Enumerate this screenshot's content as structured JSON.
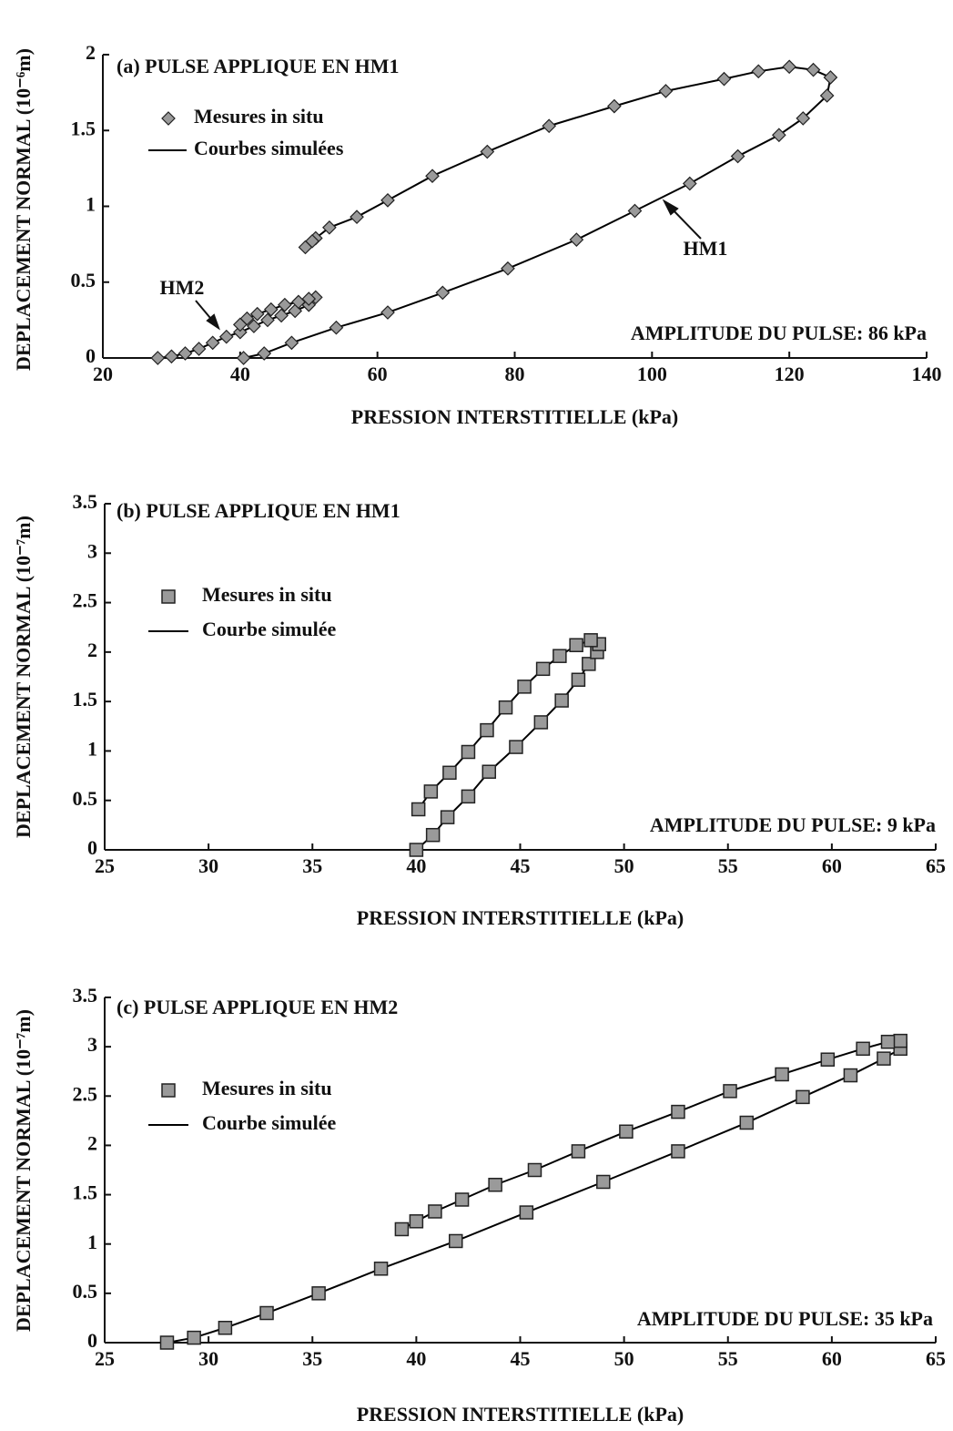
{
  "chart_data": [
    {
      "type": "scatter",
      "title": "(a) PULSE APPLIQUE EN HM1",
      "x_label": "PRESSION INTERSTITIELLE (kPa)",
      "y_label": "DEPLACEMENT NORMAL (10⁻⁶m)",
      "annotations": [
        "HM1",
        "HM2",
        "AMPLITUDE DU PULSE: 86 kPa"
      ],
      "xlim": [
        20,
        140
      ],
      "xticks": [
        20,
        40,
        60,
        80,
        100,
        120,
        140
      ],
      "ylim": [
        0,
        2
      ],
      "yticks": [
        0,
        0.5,
        1,
        1.5,
        2
      ],
      "series": [
        {
          "name": "Mesures in situ",
          "marker": "diamond",
          "color": "#9a9a9a",
          "x": [
            40.5,
            43.5,
            47.5,
            54,
            61.5,
            69.5,
            79,
            89,
            97.5,
            105.5,
            112.5,
            118.5,
            122,
            125.5,
            126,
            123.5,
            120,
            115.5,
            110.5,
            102,
            94.5,
            85,
            76,
            68,
            61.5,
            57,
            53,
            51,
            50.5,
            49.5,
            null,
            28,
            30,
            32,
            34,
            36,
            38,
            40,
            42,
            44,
            46,
            48,
            50,
            51,
            50,
            48.5,
            46.5,
            44.5,
            42.5,
            41,
            40
          ],
          "y": [
            0,
            0.03,
            0.1,
            0.2,
            0.3,
            0.43,
            0.59,
            0.78,
            0.97,
            1.15,
            1.33,
            1.47,
            1.58,
            1.73,
            1.85,
            1.9,
            1.92,
            1.89,
            1.84,
            1.76,
            1.66,
            1.53,
            1.36,
            1.2,
            1.04,
            0.93,
            0.86,
            0.79,
            0.77,
            0.73,
            null,
            0,
            0.01,
            0.03,
            0.06,
            0.1,
            0.14,
            0.17,
            0.21,
            0.25,
            0.28,
            0.31,
            0.35,
            0.4,
            0.39,
            0.37,
            0.35,
            0.32,
            0.29,
            0.26,
            0.22
          ]
        },
        {
          "name": "Courbes simulées",
          "marker": "line",
          "color": "#000000"
        }
      ]
    },
    {
      "type": "scatter",
      "title": "(b) PULSE APPLIQUE EN HM1",
      "x_label": "PRESSION INTERSTITIELLE (kPa)",
      "y_label": "DEPLACEMENT NORMAL (10⁻⁷m)",
      "annotations": [
        "AMPLITUDE DU PULSE: 9 kPa"
      ],
      "xlim": [
        25,
        65
      ],
      "xticks": [
        25,
        30,
        35,
        40,
        45,
        50,
        55,
        60,
        65
      ],
      "ylim": [
        0,
        3.5
      ],
      "yticks": [
        0,
        0.5,
        1,
        1.5,
        2,
        2.5,
        3,
        3.5
      ],
      "series": [
        {
          "name": "Mesures in situ",
          "marker": "square",
          "color": "#9a9a9a",
          "x": [
            40,
            40.8,
            41.5,
            42.5,
            43.5,
            44.8,
            46,
            47,
            47.8,
            48.3,
            48.7,
            48.8,
            48.4,
            47.7,
            46.9,
            46.1,
            45.2,
            44.3,
            43.4,
            42.5,
            41.6,
            40.7,
            40.1
          ],
          "y": [
            0,
            0.15,
            0.33,
            0.54,
            0.79,
            1.04,
            1.29,
            1.51,
            1.72,
            1.88,
            2,
            2.08,
            2.12,
            2.07,
            1.96,
            1.83,
            1.65,
            1.44,
            1.21,
            0.99,
            0.78,
            0.59,
            0.41
          ]
        },
        {
          "name": "Courbe simulée",
          "marker": "line",
          "color": "#000000"
        }
      ]
    },
    {
      "type": "scatter",
      "title": "(c) PULSE APPLIQUE EN HM2",
      "x_label": "PRESSION INTERSTITIELLE (kPa)",
      "y_label": "DEPLACEMENT NORMAL (10⁻⁷m)",
      "annotations": [
        "AMPLITUDE DU PULSE: 35 kPa"
      ],
      "xlim": [
        25,
        65
      ],
      "xticks": [
        25,
        30,
        35,
        40,
        45,
        50,
        55,
        60,
        65
      ],
      "ylim": [
        0,
        3.5
      ],
      "yticks": [
        0,
        0.5,
        1,
        1.5,
        2,
        2.5,
        3,
        3.5
      ],
      "series": [
        {
          "name": "Mesures in situ",
          "marker": "square",
          "color": "#9a9a9a",
          "x": [
            28,
            29.3,
            30.8,
            32.8,
            35.3,
            38.3,
            41.9,
            45.3,
            49,
            52.6,
            55.9,
            58.6,
            60.9,
            62.5,
            63.3,
            63.3,
            62.7,
            61.5,
            59.8,
            57.6,
            55.1,
            52.6,
            50.1,
            47.8,
            45.7,
            43.8,
            42.2,
            40.9,
            40,
            39.3
          ],
          "y": [
            0,
            0.05,
            0.15,
            0.3,
            0.5,
            0.75,
            1.03,
            1.32,
            1.63,
            1.94,
            2.23,
            2.49,
            2.71,
            2.88,
            2.98,
            3.06,
            3.05,
            2.98,
            2.87,
            2.72,
            2.55,
            2.34,
            2.14,
            1.94,
            1.75,
            1.6,
            1.45,
            1.33,
            1.23,
            1.15
          ]
        },
        {
          "name": "Courbe simulée",
          "marker": "line",
          "color": "#000000"
        }
      ]
    }
  ]
}
